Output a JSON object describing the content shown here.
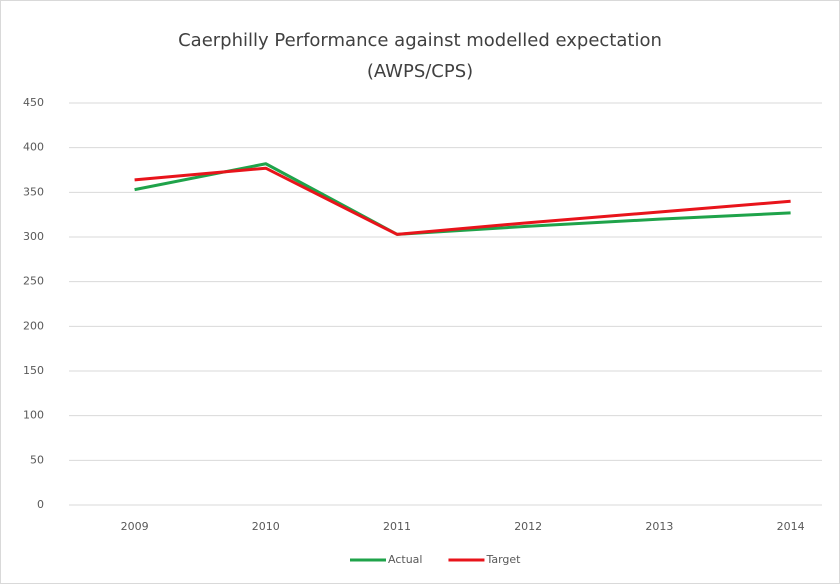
{
  "chart_data": {
    "type": "line",
    "title": "Caerphilly Performance against modelled expectation",
    "subtitle": "(AWPS/CPS)",
    "categories": [
      "2009",
      "2010",
      "2011",
      "2012",
      "2013",
      "2014"
    ],
    "series": [
      {
        "name": "Actual",
        "color": "#1fa34a",
        "values": [
          353,
          382,
          303,
          312,
          320,
          327
        ]
      },
      {
        "name": "Target",
        "color": "#e8141b",
        "values": [
          364,
          377,
          303,
          316,
          328,
          340
        ]
      }
    ],
    "ylim": [
      0,
      450
    ],
    "yticks": [
      0,
      50,
      100,
      150,
      200,
      250,
      300,
      350,
      400,
      450
    ],
    "grid": true,
    "legend": "bottom"
  }
}
